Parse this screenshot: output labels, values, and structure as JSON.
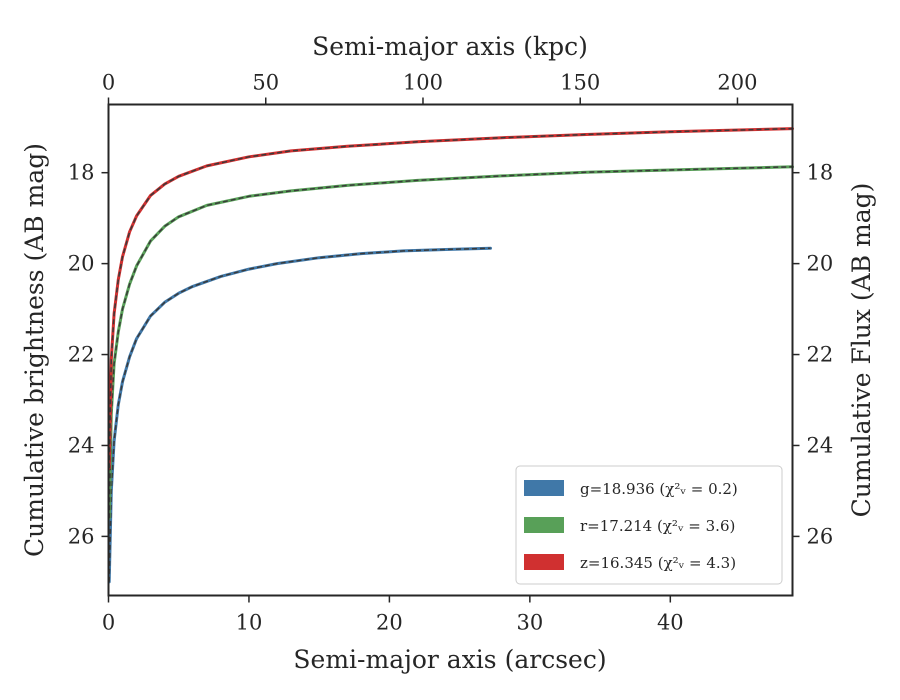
{
  "chart_data": {
    "type": "line",
    "title": "",
    "xlabel": "Semi-major axis (arcsec)",
    "x2label": "Semi-major axis (kpc)",
    "ylabel": "Cumulative brightness (AB mag)",
    "y2label": "Cumulative Flux (AB mag)",
    "xlim": [
      0,
      48.7
    ],
    "x2lim": [
      0,
      217.5
    ],
    "ylim": [
      27.3,
      16.5
    ],
    "y_inverted": true,
    "x_ticks": [
      0,
      10,
      20,
      30,
      40
    ],
    "x_tick_labels": [
      "0",
      "10",
      "20",
      "30",
      "40"
    ],
    "x2_ticks": [
      0,
      50,
      100,
      150,
      200
    ],
    "x2_tick_labels": [
      "0",
      "50",
      "100",
      "150",
      "200"
    ],
    "y_ticks": [
      18,
      20,
      22,
      24,
      26
    ],
    "y_tick_labels": [
      "18",
      "20",
      "22",
      "24",
      "26"
    ],
    "grid": false,
    "legend_position": "bottom-right",
    "series": [
      {
        "name": "g=18.936 ($\\chi^2_\\nu=0.2$)",
        "legend_label": "g=18.936 (χ²ᵥ = 0.2)",
        "color": "#4078a8",
        "x": [
          0.05,
          0.2,
          0.4,
          0.7,
          1.0,
          1.5,
          2.0,
          3.0,
          4.0,
          5.0,
          6.0,
          8.0,
          10.0,
          12.0,
          15.0,
          18.0,
          21.0,
          24.0,
          27.2
        ],
        "y": [
          27.0,
          25.0,
          23.9,
          23.1,
          22.6,
          22.05,
          21.65,
          21.15,
          20.85,
          20.65,
          20.5,
          20.28,
          20.12,
          20.0,
          19.87,
          19.78,
          19.72,
          19.69,
          19.66
        ]
      },
      {
        "name": "r=17.214 ($\\chi^2_\\nu=3.6$)",
        "legend_label": "r=17.214 (χ²ᵥ = 3.6)",
        "color": "#58a058",
        "x": [
          0.05,
          0.2,
          0.4,
          0.7,
          1.0,
          1.5,
          2.0,
          3.0,
          4.0,
          5.0,
          7.0,
          10.0,
          13.0,
          17.0,
          22.0,
          28.0,
          34.0,
          40.0,
          48.7
        ],
        "y": [
          25.6,
          23.3,
          22.2,
          21.5,
          21.0,
          20.45,
          20.05,
          19.5,
          19.18,
          18.97,
          18.72,
          18.52,
          18.4,
          18.28,
          18.17,
          18.07,
          17.99,
          17.94,
          17.87
        ]
      },
      {
        "name": "z=16.345 ($\\chi^2_\\nu=4.3$)",
        "legend_label": "z=16.345 (χ²ᵥ = 4.3)",
        "color": "#d03030",
        "x": [
          0.05,
          0.2,
          0.4,
          0.7,
          1.0,
          1.5,
          2.0,
          3.0,
          4.0,
          5.0,
          7.0,
          10.0,
          13.0,
          17.0,
          22.0,
          28.0,
          34.0,
          40.0,
          48.7
        ],
        "y": [
          24.5,
          22.1,
          21.1,
          20.35,
          19.85,
          19.3,
          18.95,
          18.5,
          18.25,
          18.08,
          17.85,
          17.65,
          17.52,
          17.42,
          17.32,
          17.23,
          17.16,
          17.1,
          17.03
        ]
      }
    ]
  }
}
